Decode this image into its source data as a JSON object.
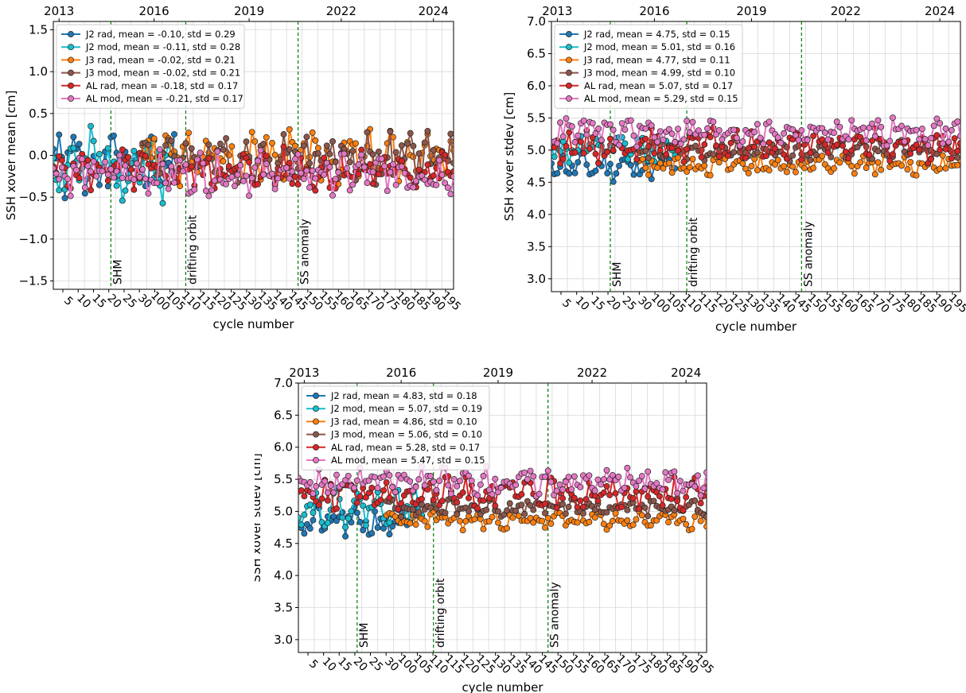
{
  "figure": {
    "xlabel": "cycle number",
    "cycle_ticks": [
      "5",
      "10",
      "15",
      "20",
      "25",
      "30",
      "100",
      "105",
      "110",
      "115",
      "120",
      "125",
      "130",
      "135",
      "140",
      "145",
      "150",
      "155",
      "160",
      "165",
      "170",
      "175",
      "180",
      "185",
      "190",
      "195"
    ],
    "year_ticks": [
      "2013",
      "2016",
      "2019",
      "2022",
      "2024"
    ],
    "events": [
      "SHM",
      "drifting orbit",
      "SS anomaly"
    ]
  },
  "chart_data": [
    {
      "type": "line",
      "ylabel": "SSH xover mean [cm]",
      "ylim": [
        -1.6,
        1.6
      ],
      "yticks": [
        -1.5,
        -1.0,
        -0.5,
        0.0,
        0.5,
        1.0,
        1.5
      ],
      "ytick_labels": [
        "−1.5",
        "−1.0",
        "−0.5",
        "0.0",
        "0.5",
        "1.0",
        "1.5"
      ],
      "legend": "upper-left",
      "grid": true,
      "series": [
        {
          "name": "J2 rad, mean = -0.10, std = 0.29",
          "color": "#1f77b4",
          "start": 0,
          "end": 43,
          "base": -0.1,
          "amp": 0.29,
          "seed": 1
        },
        {
          "name": "J2 mod, mean = -0.11, std = 0.28",
          "color": "#17becf",
          "start": 0,
          "end": 43,
          "base": -0.11,
          "amp": 0.28,
          "seed": 2
        },
        {
          "name": "J3 rad, mean = -0.02, std = 0.21",
          "color": "#ff7f0e",
          "start": 30,
          "end": 140,
          "base": -0.02,
          "amp": 0.21,
          "seed": 3
        },
        {
          "name": "J3 mod, mean = -0.02, std = 0.21",
          "color": "#8c564b",
          "start": 30,
          "end": 140,
          "base": -0.02,
          "amp": 0.21,
          "seed": 4
        },
        {
          "name": "AL rad, mean = -0.18, std = 0.17",
          "color": "#d62728",
          "start": 0,
          "end": 140,
          "base": -0.18,
          "amp": 0.17,
          "seed": 5
        },
        {
          "name": "AL mod, mean = -0.21, std = 0.17",
          "color": "#e377c2",
          "start": 0,
          "end": 140,
          "base": -0.21,
          "amp": 0.17,
          "seed": 6
        }
      ]
    },
    {
      "type": "line",
      "ylabel": "SSH xover stdev [cm]",
      "ylim": [
        2.8,
        7.0
      ],
      "yticks": [
        3.0,
        3.5,
        4.0,
        4.5,
        5.0,
        5.5,
        6.0,
        6.5,
        7.0
      ],
      "ytick_labels": [
        "3.0",
        "3.5",
        "4.0",
        "4.5",
        "5.0",
        "5.5",
        "6.0",
        "6.5",
        "7.0"
      ],
      "legend": "upper-left",
      "grid": true,
      "series": [
        {
          "name": "J2 rad, mean = 4.75, std = 0.15",
          "color": "#1f77b4",
          "start": 0,
          "end": 43,
          "base": 4.75,
          "amp": 0.15,
          "seed": 11
        },
        {
          "name": "J2 mod, mean = 5.01, std = 0.16",
          "color": "#17becf",
          "start": 0,
          "end": 43,
          "base": 5.01,
          "amp": 0.16,
          "seed": 12
        },
        {
          "name": "J3 rad, mean = 4.77, std = 0.11",
          "color": "#ff7f0e",
          "start": 30,
          "end": 140,
          "base": 4.77,
          "amp": 0.11,
          "seed": 13
        },
        {
          "name": "J3 mod, mean = 4.99, std = 0.10",
          "color": "#8c564b",
          "start": 30,
          "end": 140,
          "base": 4.99,
          "amp": 0.1,
          "seed": 14
        },
        {
          "name": "AL rad, mean = 5.07, std = 0.17",
          "color": "#d62728",
          "start": 0,
          "end": 140,
          "base": 5.07,
          "amp": 0.17,
          "seed": 15
        },
        {
          "name": "AL mod, mean = 5.29, std = 0.15",
          "color": "#e377c2",
          "start": 0,
          "end": 140,
          "base": 5.29,
          "amp": 0.15,
          "seed": 16
        }
      ]
    },
    {
      "type": "line",
      "ylabel": "SSH xover stdev [cm]",
      "ylim": [
        2.8,
        7.0
      ],
      "yticks": [
        3.0,
        3.5,
        4.0,
        4.5,
        5.0,
        5.5,
        6.0,
        6.5,
        7.0
      ],
      "ytick_labels": [
        "3.0",
        "3.5",
        "4.0",
        "4.5",
        "5.0",
        "5.5",
        "6.0",
        "6.5",
        "7.0"
      ],
      "legend": "upper-left",
      "grid": true,
      "series": [
        {
          "name": "J2 rad, mean = 4.83, std = 0.18",
          "color": "#1f77b4",
          "start": 0,
          "end": 43,
          "base": 4.83,
          "amp": 0.18,
          "seed": 21
        },
        {
          "name": "J2 mod, mean = 5.07, std = 0.19",
          "color": "#17becf",
          "start": 0,
          "end": 43,
          "base": 5.07,
          "amp": 0.19,
          "seed": 22
        },
        {
          "name": "J3 rad, mean = 4.86, std = 0.10",
          "color": "#ff7f0e",
          "start": 30,
          "end": 140,
          "base": 4.86,
          "amp": 0.1,
          "seed": 23
        },
        {
          "name": "J3 mod, mean = 5.06, std = 0.10",
          "color": "#8c564b",
          "start": 30,
          "end": 140,
          "base": 5.06,
          "amp": 0.1,
          "seed": 24
        },
        {
          "name": "AL rad, mean = 5.28, std = 0.17",
          "color": "#d62728",
          "start": 0,
          "end": 140,
          "base": 5.28,
          "amp": 0.17,
          "seed": 25
        },
        {
          "name": "AL mod, mean = 5.47, std = 0.15",
          "color": "#e377c2",
          "start": 0,
          "end": 140,
          "base": 5.47,
          "amp": 0.15,
          "seed": 26
        }
      ]
    }
  ]
}
